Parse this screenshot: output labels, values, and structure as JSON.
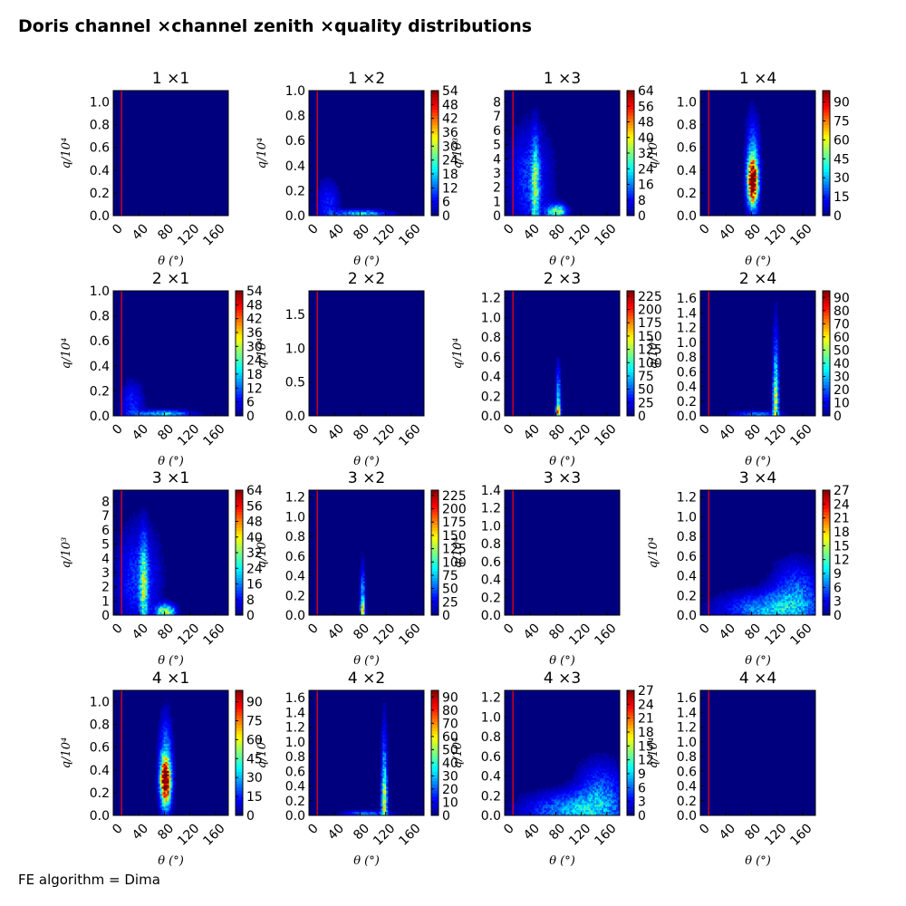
{
  "figure": {
    "title": "Doris channel ×channel zenith ×quality distributions",
    "footer": "FE algorithm = Dima"
  },
  "colors": {
    "background": "#00007f",
    "cut_line": "#ff0000",
    "colormap": "jet"
  },
  "chart_data": [
    {
      "type": "heatmap",
      "title": "1 ×1",
      "xlabel": "θ (°)",
      "ylabel": "q/10⁴",
      "ylim": [
        0,
        1.1
      ],
      "yticks": [
        "0.0",
        "0.2",
        "0.4",
        "0.6",
        "0.8",
        "1.0"
      ],
      "xticks": [
        "0",
        "40",
        "80",
        "120",
        "160"
      ],
      "xlim": [
        0,
        180
      ],
      "cut_theta": 13,
      "colorbar": null,
      "hot_spots": []
    },
    {
      "type": "heatmap",
      "title": "1 ×2",
      "xlabel": "θ (°)",
      "ylabel": "q/10⁴",
      "ylim": [
        0,
        1.0
      ],
      "yticks": [
        "0.0",
        "0.2",
        "0.4",
        "0.6",
        "0.8",
        "1.0"
      ],
      "xticks": [
        "0",
        "40",
        "80",
        "120",
        "160"
      ],
      "xlim": [
        0,
        180
      ],
      "cut_theta": 13,
      "colorbar": {
        "max": 54,
        "ticks": [
          "0",
          "6",
          "12",
          "18",
          "24",
          "30",
          "36",
          "42",
          "48",
          "54"
        ]
      },
      "hot_spots": [
        {
          "theta": 80,
          "q": 0.015,
          "stheta": 28,
          "sq": 0.02,
          "level": 0.35
        },
        {
          "theta": 30,
          "q": 0.1,
          "stheta": 12,
          "sq": 0.12,
          "level": 0.15
        }
      ]
    },
    {
      "type": "heatmap",
      "title": "1 ×3",
      "xlabel": "θ (°)",
      "ylabel": "q/10³",
      "ylim": [
        0,
        8.8
      ],
      "yticks": [
        "0",
        "1",
        "2",
        "3",
        "4",
        "5",
        "6",
        "7",
        "8"
      ],
      "xticks": [
        "0",
        "40",
        "80",
        "120",
        "160"
      ],
      "xlim": [
        0,
        180
      ],
      "cut_theta": 13,
      "colorbar": {
        "max": 64,
        "ticks": [
          "0",
          "8",
          "16",
          "24",
          "32",
          "40",
          "48",
          "56",
          "64"
        ]
      },
      "hot_spots": [
        {
          "theta": 48,
          "q": 2.0,
          "stheta": 4,
          "sq": 2.2,
          "level": 0.4
        },
        {
          "theta": 82,
          "q": 0.25,
          "stheta": 10,
          "sq": 0.35,
          "level": 0.55
        },
        {
          "theta": 40,
          "q": 2.5,
          "stheta": 22,
          "sq": 2.5,
          "level": 0.18
        }
      ]
    },
    {
      "type": "heatmap",
      "title": "1 ×4",
      "xlabel": "θ (°)",
      "ylabel": "q/10⁴",
      "ylim": [
        0,
        1.1
      ],
      "yticks": [
        "0.0",
        "0.2",
        "0.4",
        "0.6",
        "0.8",
        "1.0"
      ],
      "xticks": [
        "0",
        "40",
        "80",
        "120",
        "160"
      ],
      "xlim": [
        0,
        180
      ],
      "cut_theta": 13,
      "colorbar": {
        "max": 99,
        "ticks": [
          "0",
          "15",
          "30",
          "45",
          "60",
          "75",
          "90"
        ]
      },
      "hot_spots": [
        {
          "theta": 82,
          "q": 0.3,
          "stheta": 5,
          "sq": 0.12,
          "level": 1.0
        },
        {
          "theta": 82,
          "q": 0.4,
          "stheta": 7,
          "sq": 0.28,
          "level": 0.35
        }
      ]
    },
    {
      "type": "heatmap",
      "title": "2 ×1",
      "xlabel": "θ (°)",
      "ylabel": "q/10⁴",
      "ylim": [
        0,
        1.0
      ],
      "yticks": [
        "0.0",
        "0.2",
        "0.4",
        "0.6",
        "0.8",
        "1.0"
      ],
      "xticks": [
        "0",
        "40",
        "80",
        "120",
        "160"
      ],
      "xlim": [
        0,
        180
      ],
      "cut_theta": 13,
      "colorbar": {
        "max": 54,
        "ticks": [
          "0",
          "6",
          "12",
          "18",
          "24",
          "30",
          "36",
          "42",
          "48",
          "54"
        ]
      },
      "hot_spots": [
        {
          "theta": 80,
          "q": 0.015,
          "stheta": 28,
          "sq": 0.02,
          "level": 0.35
        },
        {
          "theta": 30,
          "q": 0.1,
          "stheta": 12,
          "sq": 0.12,
          "level": 0.15
        }
      ]
    },
    {
      "type": "heatmap",
      "title": "2 ×2",
      "xlabel": "θ (°)",
      "ylabel": "q/10⁴",
      "ylim": [
        0,
        1.85
      ],
      "yticks": [
        "0.0",
        "0.5",
        "1.0",
        "1.5"
      ],
      "xticks": [
        "0",
        "40",
        "80",
        "120",
        "160"
      ],
      "xlim": [
        0,
        180
      ],
      "cut_theta": 13,
      "colorbar": null,
      "hot_spots": []
    },
    {
      "type": "heatmap",
      "title": "2 ×3",
      "xlabel": "θ (°)",
      "ylabel": "q/10⁴",
      "ylim": [
        0,
        1.27
      ],
      "yticks": [
        "0.0",
        "0.2",
        "0.4",
        "0.6",
        "0.8",
        "1.0",
        "1.2"
      ],
      "xticks": [
        "0",
        "40",
        "80",
        "120",
        "160"
      ],
      "xlim": [
        0,
        180
      ],
      "cut_theta": 13,
      "colorbar": {
        "max": 235,
        "ticks": [
          "0",
          "25",
          "50",
          "75",
          "100",
          "125",
          "150",
          "175",
          "200",
          "225"
        ]
      },
      "hot_spots": [
        {
          "theta": 84,
          "q": 0.05,
          "stheta": 2.5,
          "sq": 0.06,
          "level": 0.55
        },
        {
          "theta": 84,
          "q": 0.2,
          "stheta": 2.5,
          "sq": 0.2,
          "level": 0.3
        }
      ]
    },
    {
      "type": "heatmap",
      "title": "2 ×4",
      "xlabel": "θ (°)",
      "ylabel": "q/10⁴",
      "ylim": [
        0,
        1.7
      ],
      "yticks": [
        "0.0",
        "0.2",
        "0.4",
        "0.6",
        "0.8",
        "1.0",
        "1.2",
        "1.4",
        "1.6"
      ],
      "xticks": [
        "0",
        "40",
        "80",
        "120",
        "160"
      ],
      "xlim": [
        0,
        180
      ],
      "cut_theta": 13,
      "colorbar": {
        "max": 95,
        "ticks": [
          "0",
          "10",
          "20",
          "30",
          "40",
          "50",
          "60",
          "70",
          "80",
          "90"
        ]
      },
      "hot_spots": [
        {
          "theta": 118,
          "q": 0.15,
          "stheta": 3,
          "sq": 0.3,
          "level": 0.45
        },
        {
          "theta": 118,
          "q": 0.6,
          "stheta": 3,
          "sq": 0.5,
          "level": 0.22
        },
        {
          "theta": 90,
          "q": 0.02,
          "stheta": 25,
          "sq": 0.03,
          "level": 0.25
        }
      ]
    },
    {
      "type": "heatmap",
      "title": "3 ×1",
      "xlabel": "θ (°)",
      "ylabel": "q/10³",
      "ylim": [
        0,
        8.8
      ],
      "yticks": [
        "0",
        "1",
        "2",
        "3",
        "4",
        "5",
        "6",
        "7",
        "8"
      ],
      "xticks": [
        "0",
        "40",
        "80",
        "120",
        "160"
      ],
      "xlim": [
        0,
        180
      ],
      "cut_theta": 13,
      "colorbar": {
        "max": 64,
        "ticks": [
          "0",
          "8",
          "16",
          "24",
          "32",
          "40",
          "48",
          "56",
          "64"
        ]
      },
      "hot_spots": [
        {
          "theta": 48,
          "q": 2.0,
          "stheta": 4,
          "sq": 2.2,
          "level": 0.4
        },
        {
          "theta": 82,
          "q": 0.25,
          "stheta": 10,
          "sq": 0.35,
          "level": 0.55
        },
        {
          "theta": 40,
          "q": 2.5,
          "stheta": 22,
          "sq": 2.5,
          "level": 0.18
        }
      ]
    },
    {
      "type": "heatmap",
      "title": "3 ×2",
      "xlabel": "θ (°)",
      "ylabel": "q/10⁴",
      "ylim": [
        0,
        1.27
      ],
      "yticks": [
        "0.0",
        "0.2",
        "0.4",
        "0.6",
        "0.8",
        "1.0",
        "1.2"
      ],
      "xticks": [
        "0",
        "40",
        "80",
        "120",
        "160"
      ],
      "xlim": [
        0,
        180
      ],
      "cut_theta": 13,
      "colorbar": {
        "max": 235,
        "ticks": [
          "0",
          "25",
          "50",
          "75",
          "100",
          "125",
          "150",
          "175",
          "200",
          "225"
        ]
      },
      "hot_spots": [
        {
          "theta": 84,
          "q": 0.05,
          "stheta": 2.5,
          "sq": 0.06,
          "level": 0.55
        },
        {
          "theta": 84,
          "q": 0.2,
          "stheta": 2.5,
          "sq": 0.2,
          "level": 0.3
        }
      ]
    },
    {
      "type": "heatmap",
      "title": "3 ×3",
      "xlabel": "θ (°)",
      "ylabel": "q/10⁴",
      "ylim": [
        0,
        1.4
      ],
      "yticks": [
        "0.0",
        "0.2",
        "0.4",
        "0.6",
        "0.8",
        "1.0",
        "1.2",
        "1.4"
      ],
      "xticks": [
        "0",
        "40",
        "80",
        "120",
        "160"
      ],
      "xlim": [
        0,
        180
      ],
      "cut_theta": 13,
      "colorbar": null,
      "hot_spots": []
    },
    {
      "type": "heatmap",
      "title": "3 ×4",
      "xlabel": "θ (°)",
      "ylabel": "q/10⁴",
      "ylim": [
        0,
        1.27
      ],
      "yticks": [
        "0.0",
        "0.2",
        "0.4",
        "0.6",
        "0.8",
        "1.0",
        "1.2"
      ],
      "xticks": [
        "0",
        "40",
        "80",
        "120",
        "160"
      ],
      "xlim": [
        0,
        180
      ],
      "cut_theta": 13,
      "colorbar": {
        "max": 27,
        "ticks": [
          "0",
          "3",
          "6",
          "9",
          "12",
          "15",
          "18",
          "21",
          "24",
          "27"
        ]
      },
      "hot_spots": [
        {
          "theta": 110,
          "q": 0.05,
          "stheta": 50,
          "sq": 0.12,
          "level": 0.3
        },
        {
          "theta": 150,
          "q": 0.25,
          "stheta": 25,
          "sq": 0.2,
          "level": 0.2
        }
      ]
    },
    {
      "type": "heatmap",
      "title": "4 ×1",
      "xlabel": "θ (°)",
      "ylabel": "q/10⁴",
      "ylim": [
        0,
        1.1
      ],
      "yticks": [
        "0.0",
        "0.2",
        "0.4",
        "0.6",
        "0.8",
        "1.0"
      ],
      "xticks": [
        "0",
        "40",
        "80",
        "120",
        "160"
      ],
      "xlim": [
        0,
        180
      ],
      "cut_theta": 13,
      "colorbar": {
        "max": 99,
        "ticks": [
          "0",
          "15",
          "30",
          "45",
          "60",
          "75",
          "90"
        ]
      },
      "hot_spots": [
        {
          "theta": 82,
          "q": 0.3,
          "stheta": 5,
          "sq": 0.12,
          "level": 1.0
        },
        {
          "theta": 82,
          "q": 0.4,
          "stheta": 7,
          "sq": 0.28,
          "level": 0.35
        }
      ]
    },
    {
      "type": "heatmap",
      "title": "4 ×2",
      "xlabel": "θ (°)",
      "ylabel": "q/10⁴",
      "ylim": [
        0,
        1.7
      ],
      "yticks": [
        "0.0",
        "0.2",
        "0.4",
        "0.6",
        "0.8",
        "1.0",
        "1.2",
        "1.4",
        "1.6"
      ],
      "xticks": [
        "0",
        "40",
        "80",
        "120",
        "160"
      ],
      "xlim": [
        0,
        180
      ],
      "cut_theta": 13,
      "colorbar": {
        "max": 95,
        "ticks": [
          "0",
          "10",
          "20",
          "30",
          "40",
          "50",
          "60",
          "70",
          "80",
          "90"
        ]
      },
      "hot_spots": [
        {
          "theta": 118,
          "q": 0.15,
          "stheta": 3,
          "sq": 0.3,
          "level": 0.45
        },
        {
          "theta": 118,
          "q": 0.6,
          "stheta": 3,
          "sq": 0.5,
          "level": 0.22
        },
        {
          "theta": 90,
          "q": 0.02,
          "stheta": 25,
          "sq": 0.03,
          "level": 0.25
        }
      ]
    },
    {
      "type": "heatmap",
      "title": "4 ×3",
      "xlabel": "θ (°)",
      "ylabel": "q/10⁴",
      "ylim": [
        0,
        1.27
      ],
      "yticks": [
        "0.0",
        "0.2",
        "0.4",
        "0.6",
        "0.8",
        "1.0",
        "1.2"
      ],
      "xticks": [
        "0",
        "40",
        "80",
        "120",
        "160"
      ],
      "xlim": [
        0,
        180
      ],
      "cut_theta": 13,
      "colorbar": {
        "max": 27,
        "ticks": [
          "0",
          "3",
          "6",
          "9",
          "12",
          "15",
          "18",
          "21",
          "24",
          "27"
        ]
      },
      "hot_spots": [
        {
          "theta": 110,
          "q": 0.05,
          "stheta": 50,
          "sq": 0.12,
          "level": 0.3
        },
        {
          "theta": 150,
          "q": 0.25,
          "stheta": 25,
          "sq": 0.2,
          "level": 0.2
        }
      ]
    },
    {
      "type": "heatmap",
      "title": "4 ×4",
      "xlabel": "θ (°)",
      "ylabel": "q/10⁴",
      "ylim": [
        0,
        1.7
      ],
      "yticks": [
        "0.0",
        "0.2",
        "0.4",
        "0.6",
        "0.8",
        "1.0",
        "1.2",
        "1.4",
        "1.6"
      ],
      "xticks": [
        "0",
        "40",
        "80",
        "120",
        "160"
      ],
      "xlim": [
        0,
        180
      ],
      "cut_theta": 13,
      "colorbar": null,
      "hot_spots": []
    }
  ]
}
